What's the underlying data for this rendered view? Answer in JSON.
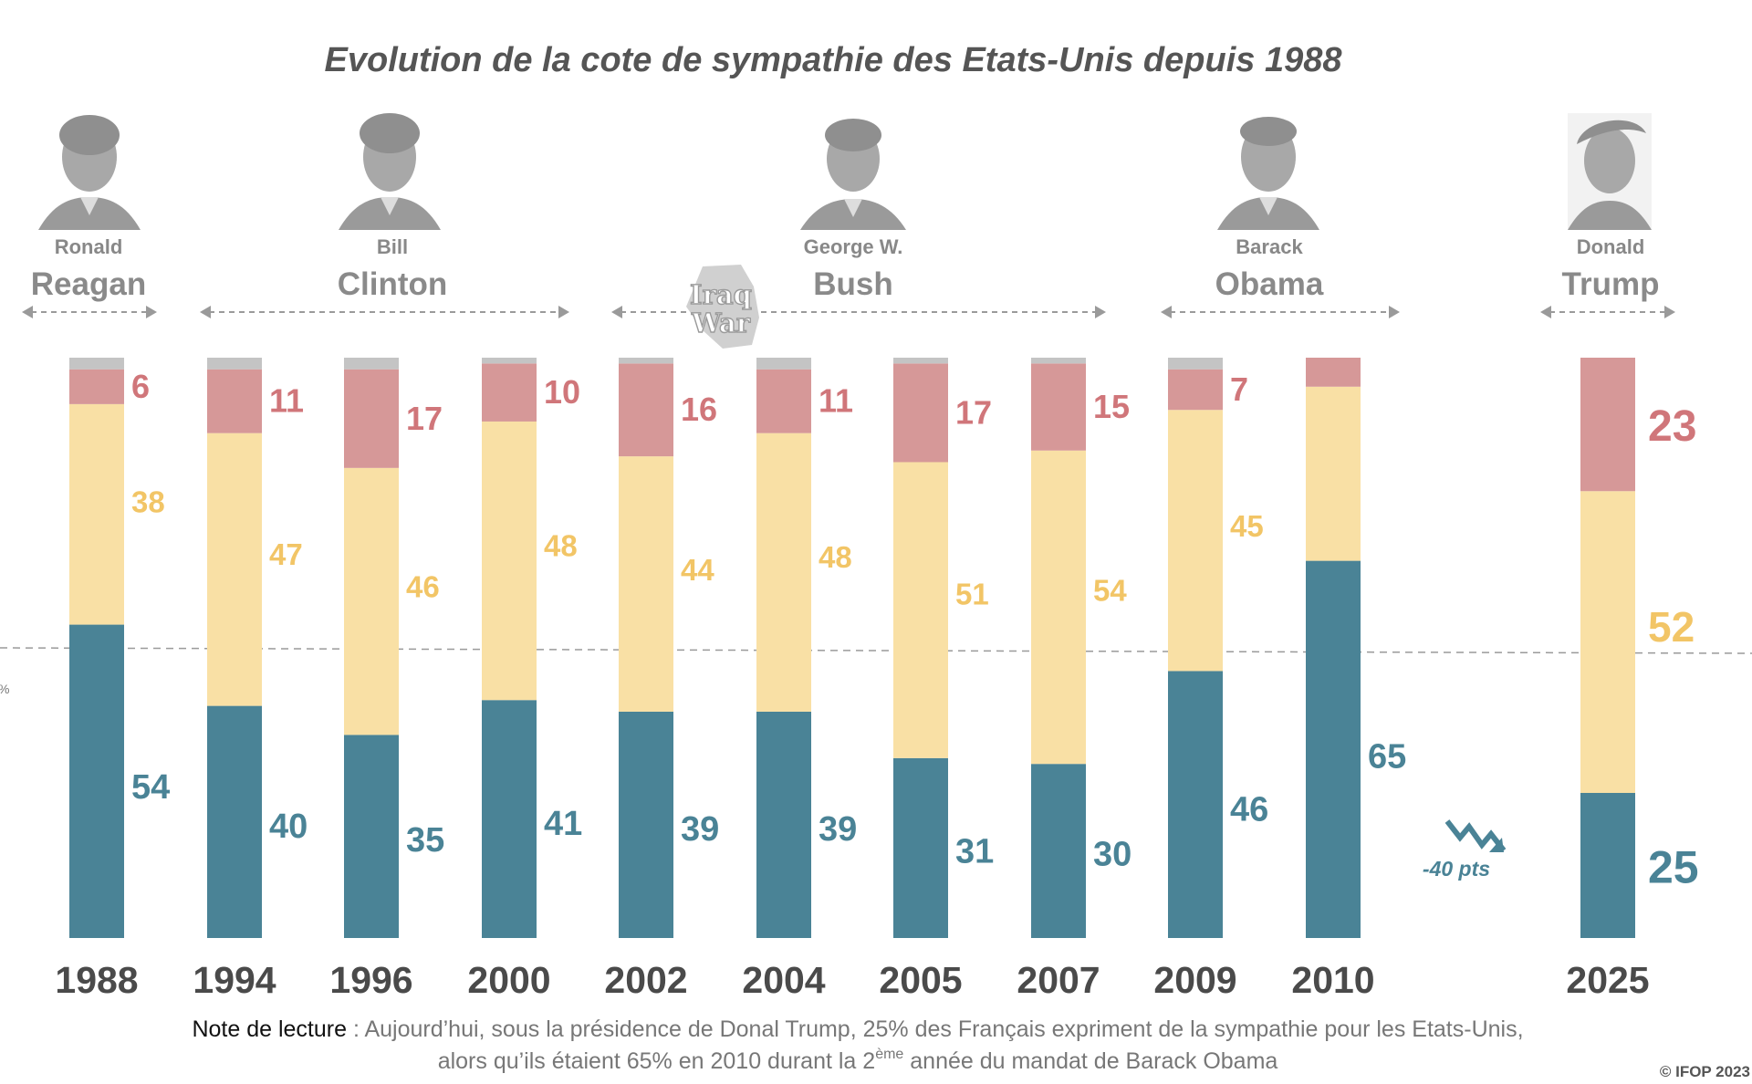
{
  "title": "Evolution de la cote de sympathie des Etats-Unis depuis 1988",
  "presidents": [
    {
      "first": "Ronald",
      "last": "Reagan",
      "icon": "reagan-portrait-icon"
    },
    {
      "first": "Bill",
      "last": "Clinton",
      "icon": "clinton-portrait-icon"
    },
    {
      "first": "George W.",
      "last": "Bush",
      "icon": "bush-portrait-icon"
    },
    {
      "first": "Barack",
      "last": "Obama",
      "icon": "obama-portrait-icon"
    },
    {
      "first": "Donald",
      "last": "Trump",
      "icon": "trump-portrait-icon"
    }
  ],
  "annotation_iraq": [
    "Iraq",
    "War"
  ],
  "annotation_drop": "-40 pts",
  "axis_fragment": "%",
  "note": {
    "lead": "Note de lecture",
    "line1": " : Aujourd’hui, sous la présidence de Donal Trump, 25% des Français expriment de la sympathie pour les Etats-Unis,",
    "line2_before": "alors qu’ils étaient 65% en 2010 durant la 2",
    "line2_sup": "ème",
    "line2_after": " année du mandat de Barack Obama"
  },
  "copyright": "© IFOP 2023",
  "colors": {
    "teal": "#4a8396",
    "yellow": "#f9e0a5",
    "yellow_label": "#f2c566",
    "pink": "#d69898",
    "pink_label": "#d0767a",
    "grey": "#c4c4c4"
  },
  "chart_data": {
    "type": "bar",
    "stacked": true,
    "categories": [
      "1988",
      "1994",
      "1996",
      "2000",
      "2002",
      "2004",
      "2005",
      "2007",
      "2009",
      "2010",
      "2025"
    ],
    "series": [
      {
        "values": [
          54,
          40,
          35,
          41,
          39,
          39,
          31,
          30,
          46,
          65,
          25
        ],
        "color": "#4a8396"
      },
      {
        "values": [
          38,
          47,
          46,
          48,
          44,
          48,
          51,
          54,
          45,
          30,
          52
        ],
        "color": "#f9e0a5",
        "labeled": [
          true,
          true,
          true,
          true,
          true,
          true,
          true,
          true,
          true,
          false,
          true
        ]
      },
      {
        "values": [
          6,
          11,
          17,
          10,
          16,
          11,
          17,
          15,
          7,
          5,
          23
        ],
        "color": "#d69898",
        "labeled": [
          true,
          true,
          true,
          true,
          true,
          true,
          true,
          true,
          true,
          false,
          true
        ]
      },
      {
        "values": [
          2,
          2,
          2,
          1,
          1,
          2,
          1,
          1,
          2,
          0,
          0
        ],
        "color": "#c4c4c4"
      }
    ],
    "reference_line": 50,
    "ylim": [
      0,
      100
    ],
    "grid": false,
    "legend": "none"
  }
}
